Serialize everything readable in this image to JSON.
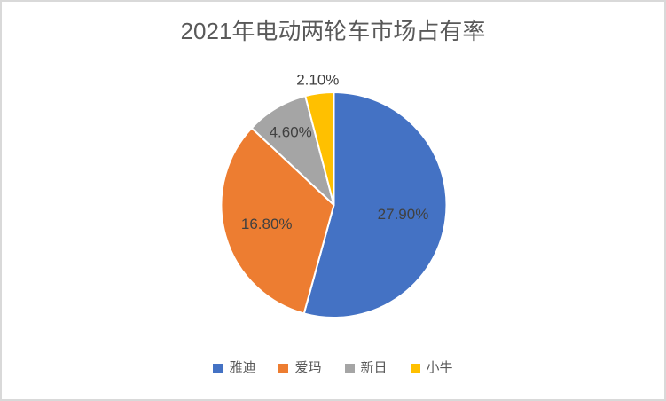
{
  "frame": {
    "background": "#FFFFFF",
    "border_color": "#D9D9D9"
  },
  "chart_data": {
    "type": "pie",
    "title": "2021年电动两轮车市场占有率",
    "legend_position": "bottom",
    "start_angle_deg": 0,
    "clockwise": true,
    "slice_separator_color": "#FFFFFF",
    "title_color": "#595959",
    "data_label_color": "#404040",
    "legend_text_color": "#595959",
    "series": [
      {
        "name": "雅迪",
        "value": 27.9,
        "data_label": "27.90%",
        "color": "#4472C4"
      },
      {
        "name": "爱玛",
        "value": 16.8,
        "data_label": "16.80%",
        "color": "#ED7D31"
      },
      {
        "name": "新日",
        "value": 4.6,
        "data_label": "4.60%",
        "color": "#A5A5A5"
      },
      {
        "name": "小牛",
        "value": 2.1,
        "data_label": "2.10%",
        "color": "#FFC000"
      }
    ]
  }
}
